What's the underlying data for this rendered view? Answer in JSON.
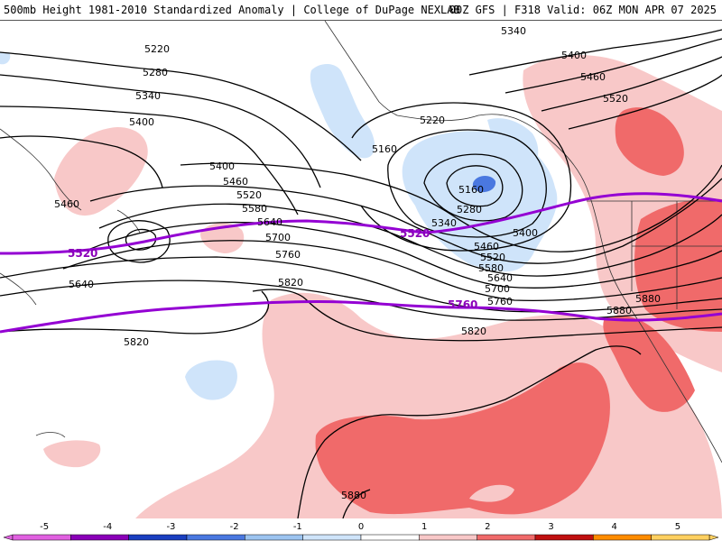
{
  "header": {
    "title_left": "500mb Height 1981-2010 Standardized Anomaly | College of DuPage NEXLAB",
    "title_right": "00Z GFS | F318 Valid: 06Z MON APR 07 2025"
  },
  "colors": {
    "pos1": "#f8c8c8",
    "pos2": "#f06a6a",
    "neg1": "#cfe4fa",
    "neg2": "#4a78e0",
    "contour": "#000000",
    "highlight": "#9400d3"
  },
  "contour_labels": [
    {
      "id": "lbl-5340-ne",
      "text": "5340"
    },
    {
      "id": "lbl-5400-ne",
      "text": "5400"
    },
    {
      "id": "lbl-5460-ne",
      "text": "5460"
    },
    {
      "id": "lbl-5520-ne",
      "text": "5520"
    },
    {
      "id": "lbl-5220-w",
      "text": "5220"
    },
    {
      "id": "lbl-5280-w",
      "text": "5280"
    },
    {
      "id": "lbl-5340-w",
      "text": "5340"
    },
    {
      "id": "lbl-5400-w",
      "text": "5400"
    },
    {
      "id": "lbl-5460-far",
      "text": "5460"
    },
    {
      "id": "lbl-5400-c",
      "text": "5400"
    },
    {
      "id": "lbl-5460-c",
      "text": "5460"
    },
    {
      "id": "lbl-5520-c",
      "text": "5520"
    },
    {
      "id": "lbl-5580-c",
      "text": "5580"
    },
    {
      "id": "lbl-5640-c",
      "text": "5640"
    },
    {
      "id": "lbl-5700-c",
      "text": "5700"
    },
    {
      "id": "lbl-5760-c",
      "text": "5760"
    },
    {
      "id": "lbl-5640-w",
      "text": "5640"
    },
    {
      "id": "lbl-5820-c",
      "text": "5820"
    },
    {
      "id": "lbl-5820-w",
      "text": "5820"
    },
    {
      "id": "lbl-5220-low",
      "text": "5220"
    },
    {
      "id": "lbl-5160-low",
      "text": "5160"
    },
    {
      "id": "lbl-5160-in",
      "text": "5160"
    },
    {
      "id": "lbl-5280-e",
      "text": "5280"
    },
    {
      "id": "lbl-5340-e",
      "text": "5340"
    },
    {
      "id": "lbl-5400-e",
      "text": "5400"
    },
    {
      "id": "lbl-5460-e",
      "text": "5460"
    },
    {
      "id": "lbl-5520-e",
      "text": "5520"
    },
    {
      "id": "lbl-5580-e",
      "text": "5580"
    },
    {
      "id": "lbl-5640-e",
      "text": "5640"
    },
    {
      "id": "lbl-5700-e",
      "text": "5700"
    },
    {
      "id": "lbl-5760-e",
      "text": "5760"
    },
    {
      "id": "lbl-5820-e",
      "text": "5820"
    },
    {
      "id": "lbl-5880-se",
      "text": "5880"
    },
    {
      "id": "lbl-5880-sw",
      "text": "5880"
    },
    {
      "id": "lbl-5880-coast",
      "text": "5880"
    }
  ],
  "highlight_labels": [
    {
      "id": "hl-5520-w",
      "text": "5520"
    },
    {
      "id": "hl-5520-c",
      "text": "5520"
    },
    {
      "id": "hl-5760-c",
      "text": "5760"
    }
  ],
  "colorbar": {
    "ticks": [
      "-5",
      "-4",
      "-3",
      "-2",
      "-1",
      "0",
      "1",
      "2",
      "3",
      "4",
      "5"
    ],
    "colors": [
      "#e060e0",
      "#8a00b8",
      "#1a3fc0",
      "#4a78e0",
      "#9cc4f0",
      "#cfe4fa",
      "#ffffff",
      "#f8c8c8",
      "#f06a6a",
      "#c01010",
      "#ff8c00",
      "#ffd060"
    ]
  }
}
